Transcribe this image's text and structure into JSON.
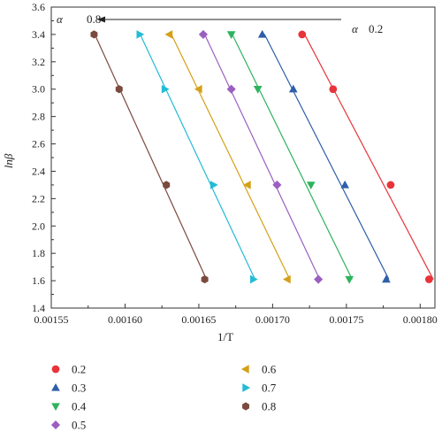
{
  "chart_data": {
    "type": "scatter",
    "title": "",
    "xlabel": "1/T",
    "ylabel": "lnβ",
    "xlim": [
      0.00155,
      0.00181
    ],
    "ylim": [
      1.4,
      3.6
    ],
    "x_ticks": [
      "0.00155",
      "0.00160",
      "0.00165",
      "0.00170",
      "0.00175",
      "0.00180"
    ],
    "y_ticks": [
      "1.4",
      "1.6",
      "1.8",
      "2.0",
      "2.2",
      "2.4",
      "2.6",
      "2.8",
      "3.0",
      "3.2",
      "3.4",
      "3.6"
    ],
    "y_values": [
      3.4,
      3.0,
      2.3,
      1.61
    ],
    "grid": false,
    "legend_position": "bottom",
    "annotations": {
      "alpha_left": "α",
      "arrow_start_label": "0.8",
      "alpha_right": "α",
      "arrow_end_label": "0.2"
    },
    "series": [
      {
        "name": "0.2",
        "color": "#e8333a",
        "marker": "circle",
        "x": [
          0.00172,
          0.001741,
          0.00178,
          0.001806
        ]
      },
      {
        "name": "0.3",
        "color": "#2e5fa8",
        "marker": "triangle-up",
        "x": [
          0.001693,
          0.001714,
          0.001749,
          0.001777
        ]
      },
      {
        "name": "0.4",
        "color": "#2db35d",
        "marker": "triangle-down",
        "x": [
          0.001672,
          0.00169,
          0.001726,
          0.001752
        ]
      },
      {
        "name": "0.5",
        "color": "#9b5fc0",
        "marker": "diamond",
        "x": [
          0.001653,
          0.001672,
          0.001703,
          0.001731
        ]
      },
      {
        "name": "0.6",
        "color": "#d4a017",
        "marker": "triangle-left",
        "x": [
          0.00163,
          0.00165,
          0.001683,
          0.00171
        ]
      },
      {
        "name": "0.7",
        "color": "#22bcd4",
        "marker": "triangle-right",
        "x": [
          0.00161,
          0.001627,
          0.00166,
          0.001687
        ]
      },
      {
        "name": "0.8",
        "color": "#7b4a3f",
        "marker": "hexagon",
        "x": [
          0.001579,
          0.001596,
          0.001628,
          0.001654
        ]
      }
    ]
  }
}
